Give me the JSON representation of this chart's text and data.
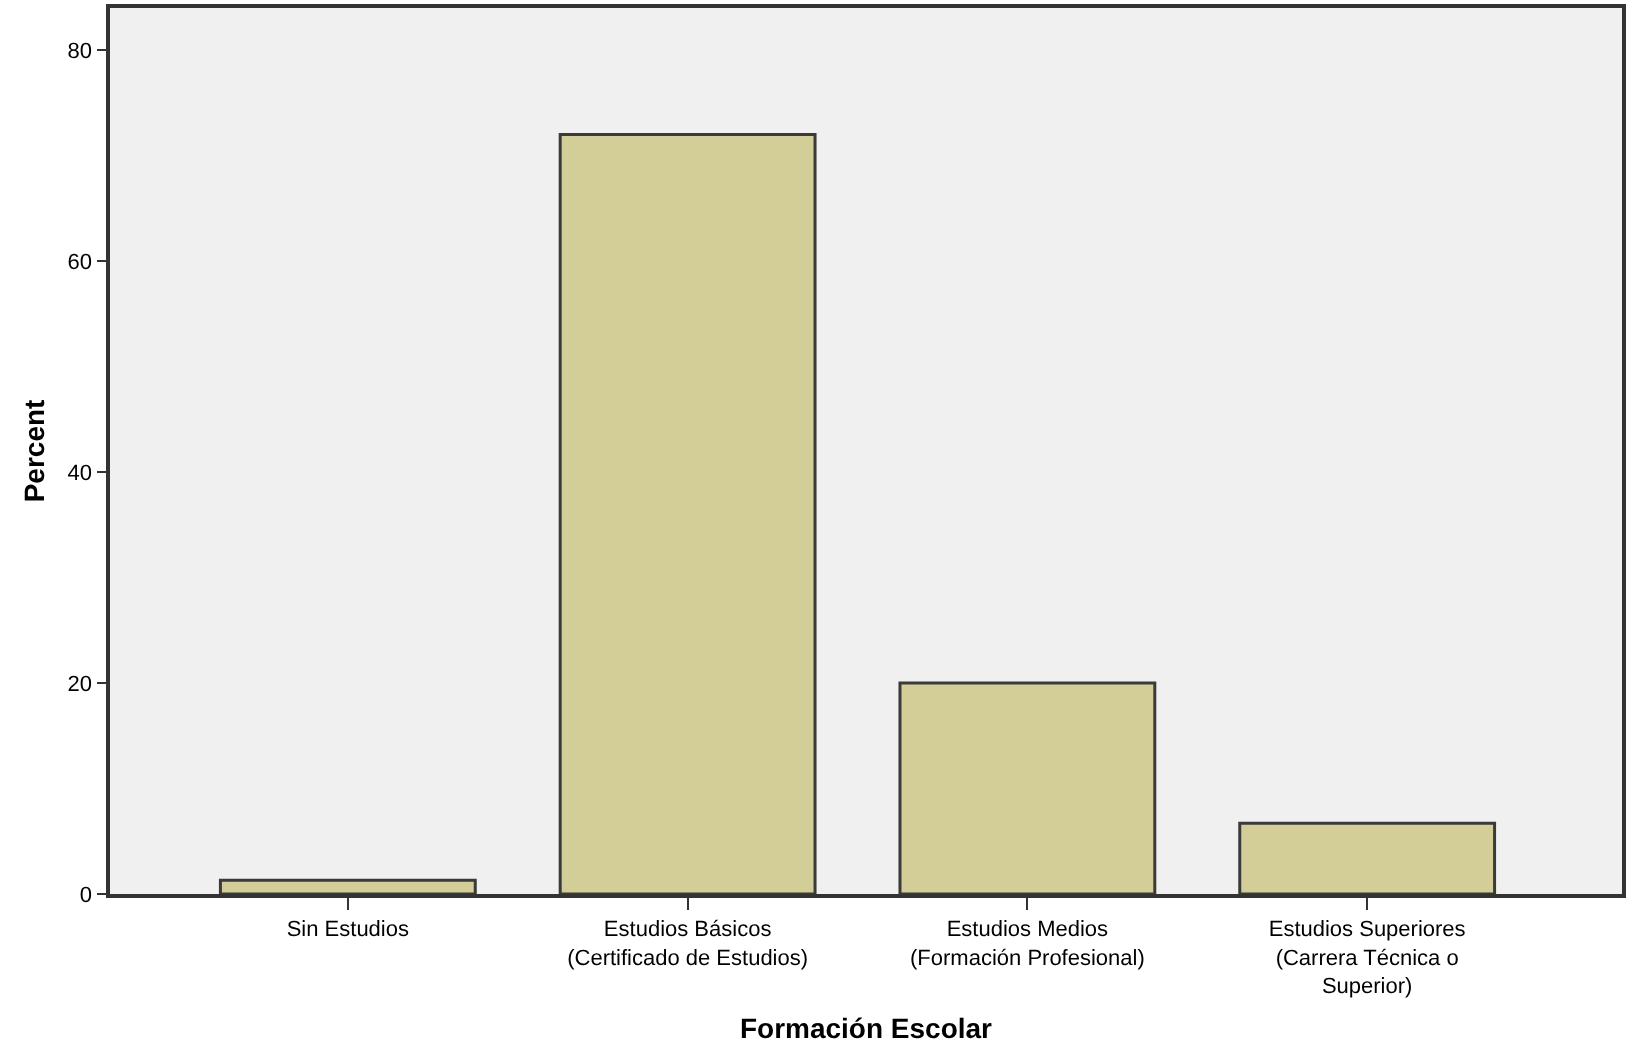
{
  "chart_data": {
    "type": "bar",
    "xlabel": "Formación Escolar",
    "ylabel": "Percent",
    "categories": [
      "Sin Estudios",
      "Estudios Básicos\n(Certificado de Estudios)",
      "Estudios Medios\n(Formación Profesional)",
      "Estudios Superiores\n(Carrera Técnica o\nSuperior)"
    ],
    "values": [
      1.3,
      72,
      20,
      6.7
    ],
    "color": "#d3ce97",
    "ylim": [
      0,
      84
    ],
    "yticks": [
      0,
      20,
      40,
      60,
      80
    ],
    "grid": false
  }
}
